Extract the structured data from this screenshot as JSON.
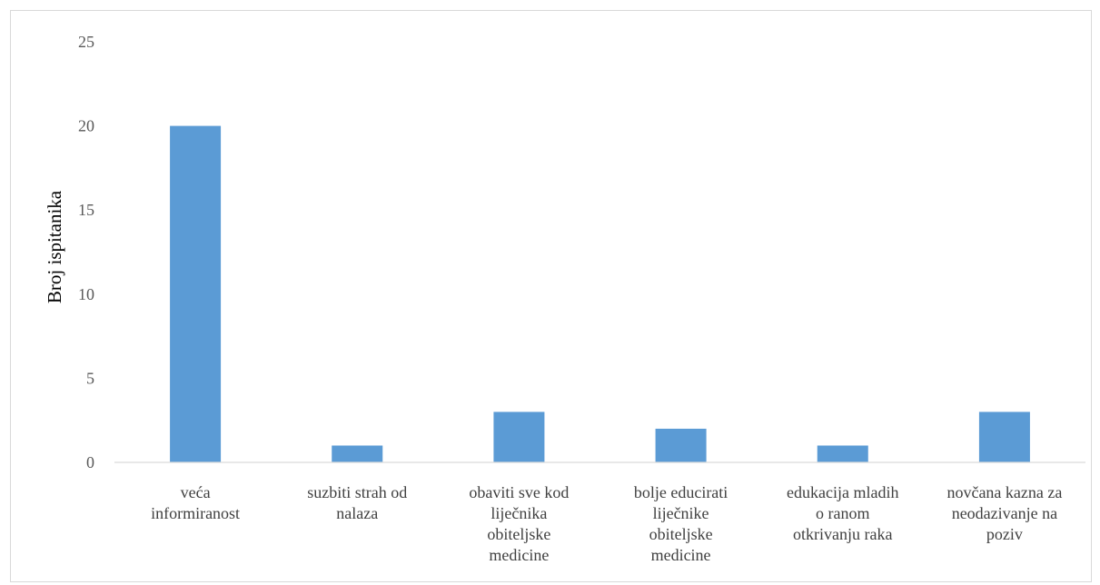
{
  "chart_data": {
    "type": "bar",
    "title": "",
    "xlabel": "",
    "ylabel": "Broj ispitanika",
    "ylim": [
      0,
      25
    ],
    "yticks": [
      0,
      5,
      10,
      15,
      20,
      25
    ],
    "grid": false,
    "legend": "none",
    "bar_color": "#5b9bd5",
    "categories": [
      [
        "veća",
        "informiranost"
      ],
      [
        "suzbiti strah od",
        "nalaza"
      ],
      [
        "obaviti sve kod",
        "liječnika",
        "obiteljske",
        "medicine"
      ],
      [
        "bolje educirati",
        "liječnike",
        "obiteljske",
        "medicine"
      ],
      [
        "edukacija mladih",
        "o ranom",
        "otkrivanju raka"
      ],
      [
        "novčana kazna za",
        "neodazivanje na",
        "poziv"
      ]
    ],
    "values": [
      20,
      1,
      3,
      2,
      1,
      3
    ]
  }
}
